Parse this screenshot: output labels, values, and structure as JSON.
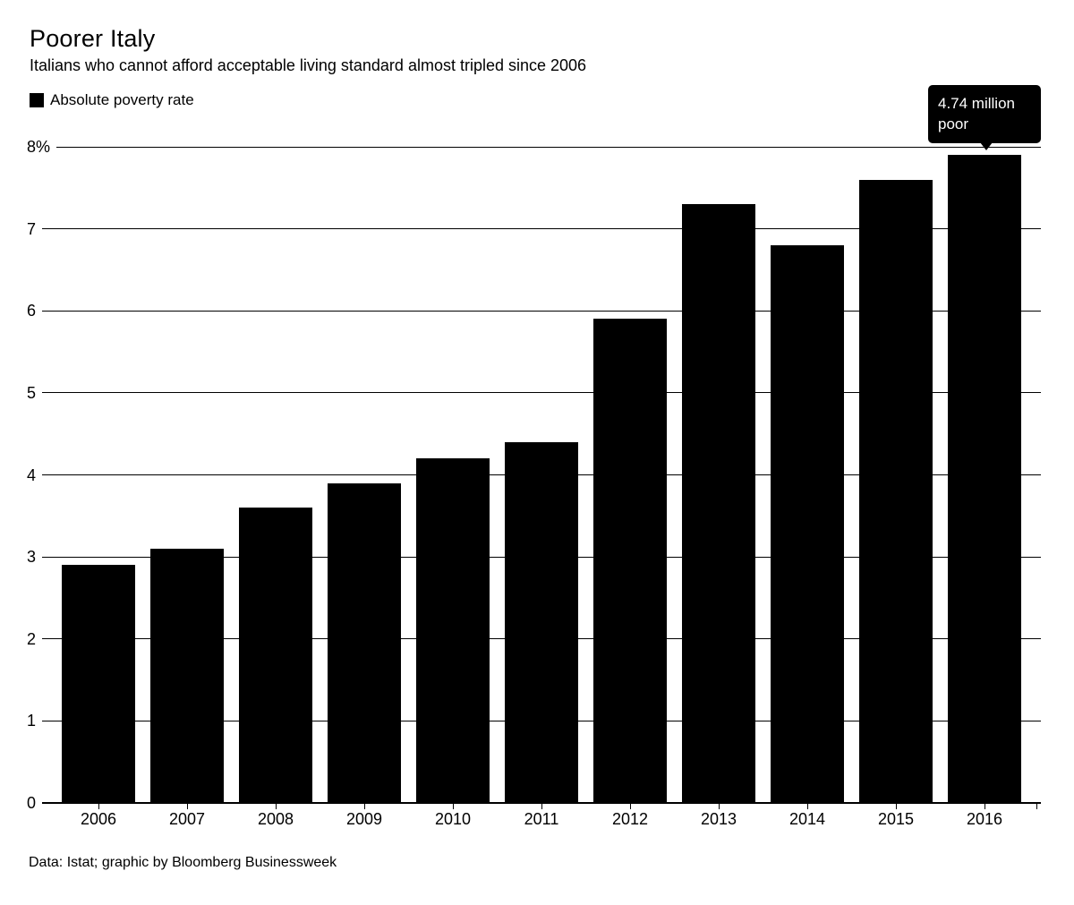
{
  "header": {
    "title": "Poorer Italy",
    "subtitle": "Italians who cannot afford acceptable living standard almost tripled since 2006"
  },
  "legend": {
    "label": "Absolute poverty rate",
    "swatch_color": "#000000"
  },
  "annotation": {
    "line1": "4.74 million",
    "line2": "poor",
    "bg_color": "#000000",
    "text_color": "#ffffff",
    "points_to_category": "2016"
  },
  "chart_data": {
    "type": "bar",
    "title": "Poorer Italy",
    "subtitle": "Italians who cannot afford acceptable living standard almost tripled since 2006",
    "series_name": "Absolute poverty rate",
    "categories": [
      "2006",
      "2007",
      "2008",
      "2009",
      "2010",
      "2011",
      "2012",
      "2013",
      "2014",
      "2015",
      "2016"
    ],
    "values": [
      2.9,
      3.1,
      3.6,
      3.9,
      4.2,
      4.4,
      5.9,
      7.3,
      6.8,
      7.6,
      7.9
    ],
    "unit": "%",
    "ylim": [
      0,
      8
    ],
    "y_ticks": [
      {
        "label": "8%",
        "value": 8
      },
      {
        "label": "7",
        "value": 7
      },
      {
        "label": "6",
        "value": 6
      },
      {
        "label": "5",
        "value": 5
      },
      {
        "label": "4",
        "value": 4
      },
      {
        "label": "3",
        "value": 3
      },
      {
        "label": "2",
        "value": 2
      },
      {
        "label": "1",
        "value": 1
      },
      {
        "label": "0",
        "value": 0
      }
    ],
    "grid": true,
    "legend_position": "top-left",
    "bar_color": "#000000",
    "annotation": {
      "text": "4.74 million poor",
      "category": "2016",
      "value": 7.9
    }
  },
  "footer": {
    "source": "Data: Istat; graphic by Bloomberg Businessweek"
  }
}
